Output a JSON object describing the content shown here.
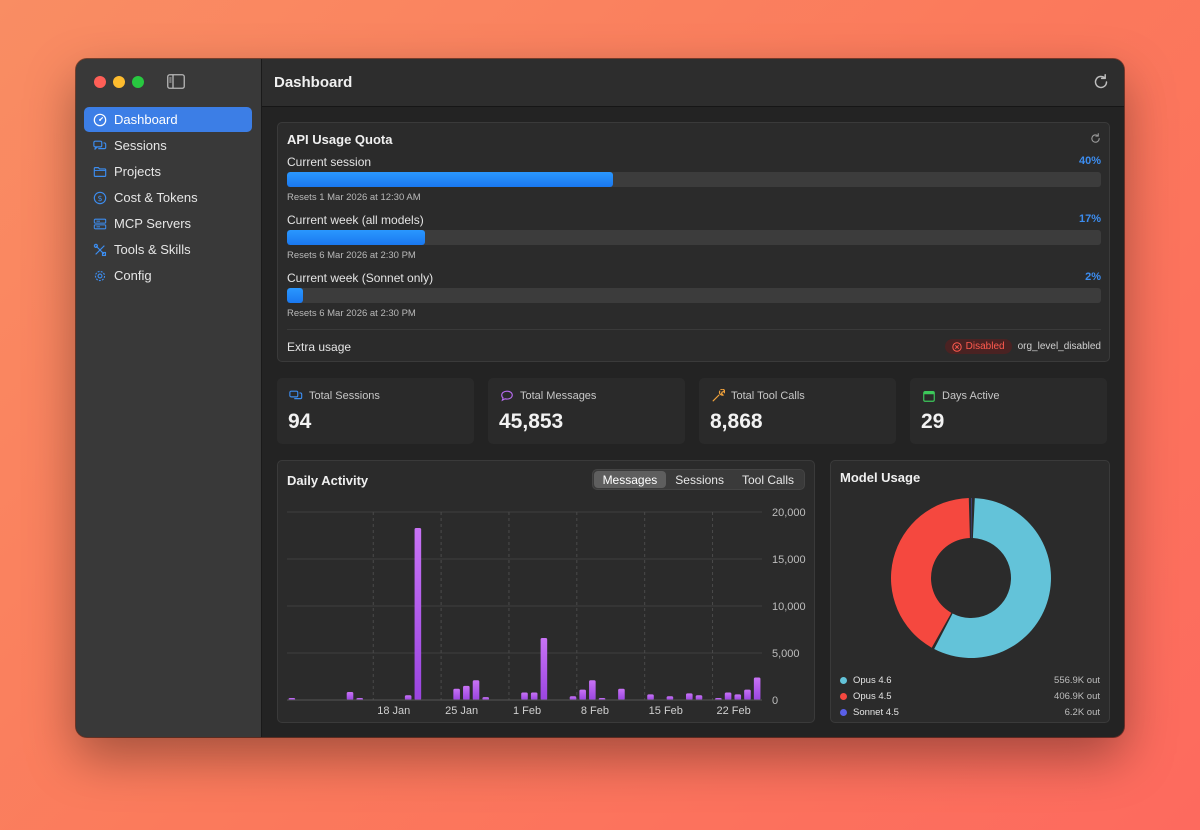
{
  "sidebar": {
    "items": [
      {
        "label": "Dashboard",
        "icon": "gauge-icon"
      },
      {
        "label": "Sessions",
        "icon": "chat-bubbles-icon"
      },
      {
        "label": "Projects",
        "icon": "folder-icon"
      },
      {
        "label": "Cost & Tokens",
        "icon": "dollar-circle-icon"
      },
      {
        "label": "MCP Servers",
        "icon": "server-icon"
      },
      {
        "label": "Tools & Skills",
        "icon": "tools-icon"
      },
      {
        "label": "Config",
        "icon": "gear-icon"
      }
    ]
  },
  "header": {
    "title": "Dashboard"
  },
  "quota": {
    "title": "API Usage Quota",
    "rows": [
      {
        "label": "Current session",
        "percent_text": "40%",
        "fraction": 0.4,
        "reset": "Resets 1 Mar 2026 at 12:30 AM"
      },
      {
        "label": "Current week (all models)",
        "percent_text": "17%",
        "fraction": 0.17,
        "reset": "Resets 6 Mar 2026 at 2:30 PM"
      },
      {
        "label": "Current week (Sonnet only)",
        "percent_text": "2%",
        "fraction": 0.02,
        "reset": "Resets 6 Mar 2026 at 2:30 PM"
      }
    ],
    "extra_label": "Extra usage",
    "extra_status": "Disabled",
    "extra_reason": "org_level_disabled"
  },
  "stats": [
    {
      "label": "Total Sessions",
      "value": "94",
      "icon": "chat-bubbles-icon",
      "color": "#3c8df0"
    },
    {
      "label": "Total Messages",
      "value": "45,853",
      "icon": "message-bubble-icon",
      "color": "#b76cf0"
    },
    {
      "label": "Total Tool Calls",
      "value": "8,868",
      "icon": "wrench-icon",
      "color": "#f0a23c"
    },
    {
      "label": "Days Active",
      "value": "29",
      "icon": "calendar-icon",
      "color": "#3cc85a"
    }
  ],
  "activity": {
    "title": "Daily Activity",
    "tabs": [
      "Messages",
      "Sessions",
      "Tool Calls"
    ],
    "active_tab": "Messages"
  },
  "chart_data": {
    "type": "bar",
    "title": "Daily Activity",
    "series_name": "Messages",
    "x_ticks": [
      "18 Jan",
      "25 Jan",
      "1 Feb",
      "8 Feb",
      "15 Feb",
      "22 Feb"
    ],
    "y_ticks": [
      "20,000",
      "15,000",
      "10,000",
      "5,000",
      "0"
    ],
    "ylim": [
      0,
      20000
    ],
    "days": [
      "11 Jan",
      "12 Jan",
      "13 Jan",
      "14 Jan",
      "15 Jan",
      "16 Jan",
      "17 Jan",
      "18 Jan",
      "19 Jan",
      "20 Jan",
      "21 Jan",
      "22 Jan",
      "23 Jan",
      "24 Jan",
      "25 Jan",
      "26 Jan",
      "27 Jan",
      "28 Jan",
      "29 Jan",
      "30 Jan",
      "31 Jan",
      "1 Feb",
      "2 Feb",
      "3 Feb",
      "4 Feb",
      "5 Feb",
      "6 Feb",
      "7 Feb",
      "8 Feb",
      "9 Feb",
      "10 Feb",
      "11 Feb",
      "12 Feb",
      "13 Feb",
      "14 Feb",
      "15 Feb",
      "16 Feb",
      "17 Feb",
      "18 Feb",
      "19 Feb",
      "20 Feb",
      "21 Feb",
      "22 Feb",
      "23 Feb",
      "24 Feb",
      "25 Feb",
      "26 Feb",
      "27 Feb",
      "28 Feb"
    ],
    "values": [
      150,
      0,
      0,
      0,
      0,
      0,
      850,
      200,
      0,
      0,
      0,
      0,
      500,
      18300,
      0,
      0,
      0,
      1200,
      1500,
      2100,
      300,
      0,
      0,
      0,
      800,
      800,
      6600,
      0,
      0,
      400,
      1100,
      2100,
      100,
      0,
      1200,
      0,
      0,
      600,
      0,
      400,
      0,
      700,
      500,
      0,
      200,
      800,
      600,
      1100,
      2400
    ]
  },
  "model_usage": {
    "title": "Model Usage",
    "chart_data": {
      "type": "pie",
      "labels": [
        "Opus 4.6",
        "Opus 4.5",
        "Sonnet 4.5"
      ],
      "values": [
        556.9,
        406.9,
        6.2
      ],
      "display": [
        "556.9K out",
        "406.9K out",
        "6.2K out"
      ],
      "colors": [
        "#63c3d9",
        "#f5483f",
        "#5a5fe8"
      ]
    }
  }
}
